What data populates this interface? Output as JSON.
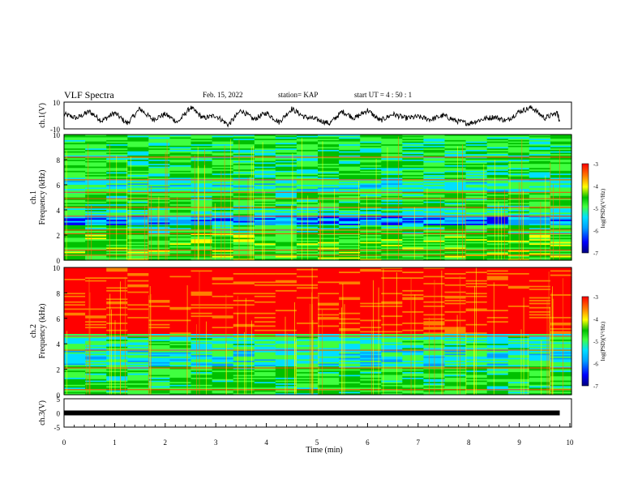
{
  "header": {
    "title": "VLF Spectra",
    "date": "Feb. 15, 2022",
    "station": "station= KAP",
    "start": "start  UT =  4 : 50 : 1"
  },
  "colors": {
    "spectrum": [
      "#000080",
      "#0000ff",
      "#00a0ff",
      "#00e0ff",
      "#40ff40",
      "#00c000",
      "#ffff00",
      "#ff8000",
      "#ff0000"
    ]
  },
  "chart_data": [
    {
      "type": "line",
      "ylabel": "ch.1(V)",
      "ylim": [
        -10,
        10
      ],
      "yticks": [
        "10",
        "-10"
      ],
      "xlim": [
        0,
        10
      ],
      "x": [
        0,
        0.25,
        0.5,
        0.75,
        1,
        1.25,
        1.5,
        1.75,
        2,
        2.25,
        2.5,
        2.75,
        3,
        3.25,
        3.5,
        3.75,
        4,
        4.25,
        4.5,
        4.75,
        5,
        5.25,
        5.5,
        5.75,
        6,
        6.25,
        6.5,
        6.75,
        7,
        7.25,
        7.5,
        7.75,
        8,
        8.25,
        8.5,
        8.75,
        9,
        9.25,
        9.5,
        9.75,
        9.8
      ],
      "y": [
        1,
        -2,
        3,
        -4,
        2,
        -6,
        5,
        -3,
        1,
        -5,
        6,
        -2,
        0,
        -7,
        4,
        -3,
        2,
        -5,
        5,
        -1,
        -3,
        -6,
        3,
        -2,
        4,
        -4,
        1,
        -2,
        -1,
        -3,
        0,
        -4,
        -6,
        -3,
        -1,
        -4,
        3,
        6,
        -2,
        2,
        -4
      ]
    },
    {
      "type": "heatmap",
      "ylabel": "ch.1\nFrequency (kHz)",
      "ylim": [
        0,
        10
      ],
      "yticks": [
        "0",
        "2",
        "4",
        "6",
        "8",
        "10"
      ],
      "xlim": [
        0,
        10
      ],
      "colorbar": {
        "label": "log(PSD)(V²/Hz)",
        "range": [
          -7,
          -3
        ],
        "ticks": [
          "-3",
          "-4",
          "-5",
          "-6",
          "-7"
        ]
      }
    },
    {
      "type": "heatmap",
      "ylabel": "ch.2\nFrequency (kHz)",
      "ylim": [
        0,
        10
      ],
      "yticks": [
        "0",
        "2",
        "4",
        "6",
        "8",
        "10"
      ],
      "xlim": [
        0,
        10
      ],
      "colorbar": {
        "label": "log(PSD)(V²/Hz)",
        "range": [
          -7,
          -3
        ],
        "ticks": [
          "-3",
          "-4",
          "-5",
          "-6",
          "-7"
        ]
      }
    },
    {
      "type": "line",
      "ylabel": "ch.3(V)",
      "ylim": [
        -5,
        5
      ],
      "yticks": [
        "5",
        "0",
        "-5"
      ],
      "xlim": [
        0,
        10
      ],
      "x": [
        0,
        9.8
      ],
      "y": [
        0,
        0
      ],
      "xlabel": "Time (min)",
      "xticks": [
        "0",
        "1",
        "2",
        "3",
        "4",
        "5",
        "6",
        "7",
        "8",
        "9",
        "10"
      ]
    }
  ]
}
